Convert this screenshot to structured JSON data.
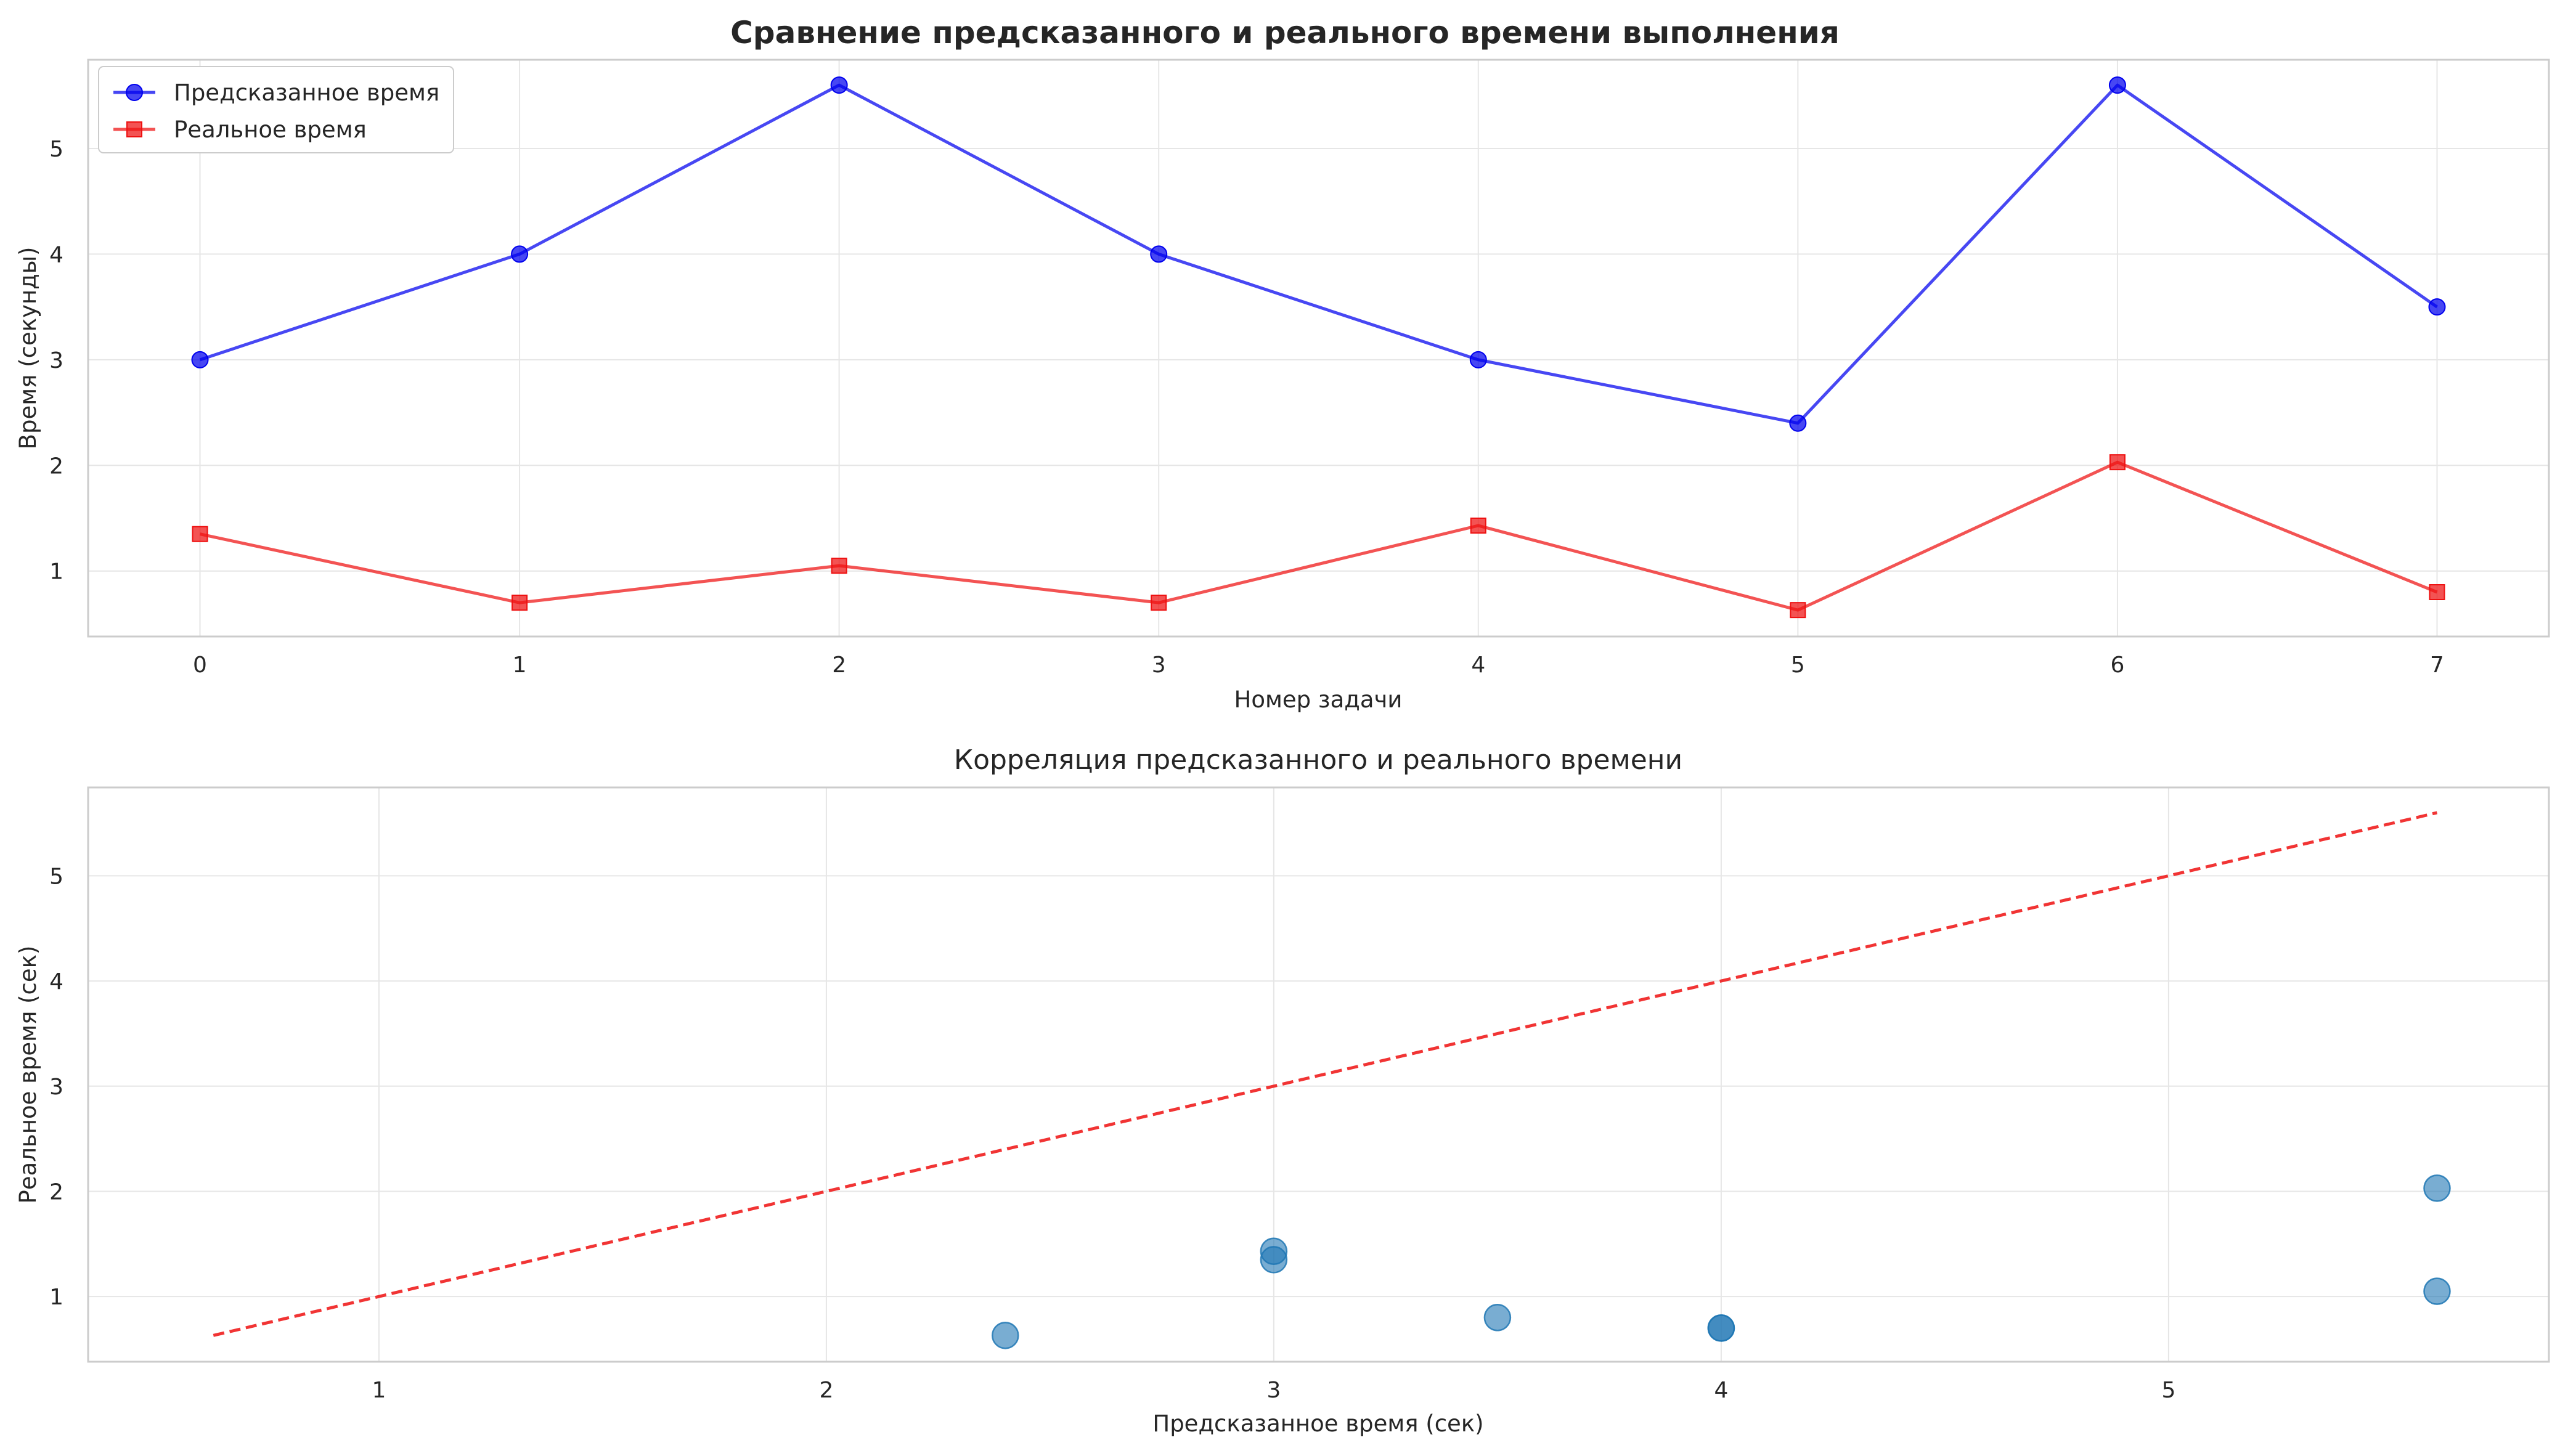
{
  "chart_data": [
    {
      "type": "line",
      "title": "Сравнение предсказанного и реального времени выполнения",
      "xlabel": "Номер задачи",
      "ylabel": "Время (секунды)",
      "x": [
        0,
        1,
        2,
        3,
        4,
        5,
        6,
        7
      ],
      "xlim": [
        -0.35,
        7.35
      ],
      "ylim": [
        0.38,
        5.84
      ],
      "xticks": [
        0,
        1,
        2,
        3,
        4,
        5,
        6,
        7
      ],
      "yticks": [
        1,
        2,
        3,
        4,
        5
      ],
      "grid": true,
      "legend": "top-left",
      "series": [
        {
          "name": "Предсказанное время",
          "marker": "circle",
          "color": "#0000ee",
          "values": [
            3.0,
            4.0,
            5.6,
            4.0,
            3.0,
            2.4,
            5.6,
            3.5
          ]
        },
        {
          "name": "Реальное время",
          "marker": "square",
          "color": "#ee1111",
          "values": [
            1.35,
            0.7,
            1.05,
            0.7,
            1.43,
            0.63,
            2.03,
            0.8
          ]
        }
      ]
    },
    {
      "type": "scatter",
      "title": "Корреляция предсказанного и реального времени",
      "xlabel": "Предсказанное время (сек)",
      "ylabel": "Реальное время (сек)",
      "xlim": [
        0.35,
        5.85
      ],
      "ylim": [
        0.38,
        5.84
      ],
      "xticks": [
        1,
        2,
        3,
        4,
        5
      ],
      "yticks": [
        1,
        2,
        3,
        4,
        5
      ],
      "grid": true,
      "points": [
        {
          "x": 3.0,
          "y": 1.35
        },
        {
          "x": 4.0,
          "y": 0.7
        },
        {
          "x": 5.6,
          "y": 1.05
        },
        {
          "x": 4.0,
          "y": 0.7
        },
        {
          "x": 3.0,
          "y": 1.43
        },
        {
          "x": 2.4,
          "y": 0.63
        },
        {
          "x": 5.6,
          "y": 2.03
        },
        {
          "x": 3.5,
          "y": 0.8
        }
      ],
      "point_color": "#1f77b4",
      "reference_line": {
        "from": [
          0.63,
          0.63
        ],
        "to": [
          5.6,
          5.6
        ],
        "style": "dashed",
        "color": "#ee1111"
      }
    }
  ]
}
